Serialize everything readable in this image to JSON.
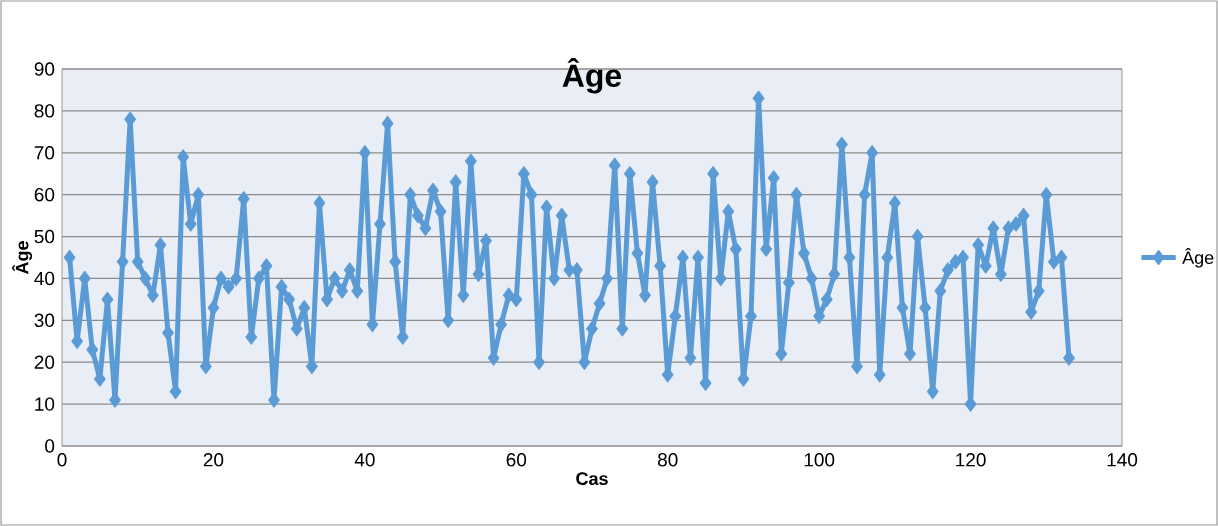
{
  "chart_data": {
    "type": "line",
    "title": "Âge",
    "xlabel": "Cas",
    "ylabel": "Âge",
    "x": [
      1,
      2,
      3,
      4,
      5,
      6,
      7,
      8,
      9,
      10,
      11,
      12,
      13,
      14,
      15,
      16,
      17,
      18,
      19,
      20,
      21,
      22,
      23,
      24,
      25,
      26,
      27,
      28,
      29,
      30,
      31,
      32,
      33,
      34,
      35,
      36,
      37,
      38,
      39,
      40,
      41,
      42,
      43,
      44,
      45,
      46,
      47,
      48,
      49,
      50,
      51,
      52,
      53,
      54,
      55,
      56,
      57,
      58,
      59,
      60,
      61,
      62,
      63,
      64,
      65,
      66,
      67,
      68,
      69,
      70,
      71,
      72,
      73,
      74,
      75,
      76,
      77,
      78,
      79,
      80,
      81,
      82,
      83,
      84,
      85,
      86,
      87,
      88,
      89,
      90,
      91,
      92,
      93,
      94,
      95,
      96,
      97,
      98,
      99,
      100,
      101,
      102,
      103,
      104,
      105,
      106,
      107,
      108,
      109,
      110,
      111,
      112,
      113,
      114,
      115,
      116,
      117,
      118,
      119,
      120,
      121,
      122,
      123,
      124,
      125,
      126,
      127,
      128,
      129,
      130,
      131,
      132,
      133
    ],
    "series": [
      {
        "name": "Âge",
        "color": "#5b9bd5",
        "values": [
          45,
          25,
          40,
          23,
          16,
          35,
          11,
          44,
          78,
          44,
          40,
          36,
          48,
          27,
          13,
          69,
          53,
          60,
          19,
          33,
          40,
          38,
          40,
          59,
          26,
          40,
          43,
          11,
          38,
          35,
          28,
          33,
          19,
          58,
          35,
          40,
          37,
          42,
          37,
          70,
          29,
          53,
          77,
          44,
          26,
          60,
          55,
          52,
          61,
          56,
          30,
          63,
          36,
          68,
          41,
          49,
          21,
          29,
          36,
          35,
          65,
          60,
          20,
          57,
          40,
          55,
          42,
          42,
          20,
          28,
          34,
          40,
          67,
          28,
          65,
          46,
          36,
          63,
          43,
          17,
          31,
          45,
          21,
          45,
          15,
          65,
          40,
          56,
          47,
          16,
          31,
          83,
          47,
          64,
          22,
          39,
          60,
          46,
          40,
          31,
          35,
          41,
          72,
          45,
          19,
          60,
          70,
          17,
          45,
          58,
          33,
          22,
          50,
          33,
          13,
          37,
          42,
          44,
          45,
          10,
          48,
          43,
          52,
          41,
          52,
          53,
          55,
          32,
          37,
          60,
          44,
          45,
          21
        ]
      }
    ],
    "xlim": [
      0,
      140
    ],
    "xticks": [
      0,
      20,
      40,
      60,
      80,
      100,
      120,
      140
    ],
    "ylim": [
      0,
      90
    ],
    "yticks": [
      0,
      10,
      20,
      30,
      40,
      50,
      60,
      70,
      80,
      90
    ],
    "grid": "y",
    "legend": "right",
    "marker": "diamond",
    "line_style": "solid"
  }
}
